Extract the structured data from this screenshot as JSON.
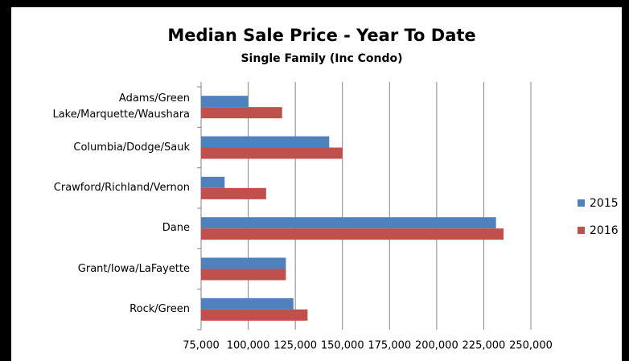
{
  "chart_data": {
    "type": "hbar",
    "title": "Median Sale Price - Year To Date",
    "subtitle": "Single Family (Inc Condo)",
    "categories": [
      "Adams/Green Lake/Marquette/Waushara",
      "Columbia/Dodge/Sauk",
      "Crawford/Richland/Vernon",
      "Dane",
      "Grant/Iowa/LaFayette",
      "Rock/Green"
    ],
    "series": [
      {
        "name": "2015",
        "color": "#4f81bd",
        "values": [
          100000,
          143000,
          87500,
          231500,
          120000,
          124000
        ]
      },
      {
        "name": "2016",
        "color": "#c0504d",
        "values": [
          118000,
          150000,
          109500,
          235500,
          120000,
          131500
        ]
      }
    ],
    "xlim": [
      75000,
      250000
    ],
    "xticks": [
      {
        "value": 75000,
        "label": "75,000"
      },
      {
        "value": 100000,
        "label": "100,000"
      },
      {
        "value": 125000,
        "label": "125,000"
      },
      {
        "value": 150000,
        "label": "150,000"
      },
      {
        "value": 175000,
        "label": "175,000"
      },
      {
        "value": 200000,
        "label": "200,000"
      },
      {
        "value": 225000,
        "label": "225,000"
      },
      {
        "value": 250000,
        "label": "250,000"
      }
    ],
    "grid": true,
    "legend": "right"
  }
}
